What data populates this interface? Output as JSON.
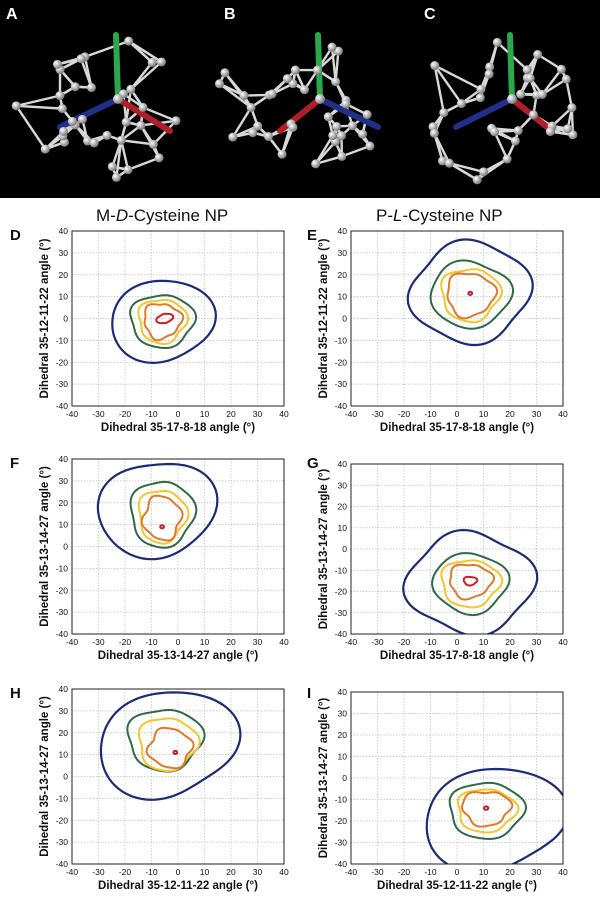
{
  "header": {
    "left": {
      "prefix": "M-",
      "italic": "D",
      "suffix": "-Cysteine NP"
    },
    "right": {
      "prefix": "P-",
      "italic": "L",
      "suffix": "-Cysteine NP"
    }
  },
  "structure_panels": [
    {
      "letter": "A"
    },
    {
      "letter": "B"
    },
    {
      "letter": "C"
    }
  ],
  "colors": {
    "level1": "#1c2a78",
    "level2": "#2f6a47",
    "level3": "#f3c62b",
    "level4": "#e07a2a",
    "level5": "#c8202a",
    "bond_green": "#2aa84a",
    "bond_blue": "#1f2f8a",
    "bond_red": "#b01e28",
    "atom": "#c9c9c9"
  },
  "chart_data": [
    {
      "id": "D",
      "type": "contour",
      "letter": "D",
      "xlabel": "Dihedral 35-17-8-18 angle (°)",
      "ylabel": "Dihedral 35-12-11-22 angle (°)",
      "xlim": [
        -40,
        40
      ],
      "ylim": [
        -40,
        40
      ],
      "ticks": [
        -40,
        -30,
        -20,
        -10,
        0,
        10,
        20,
        30,
        40
      ],
      "grid": true,
      "contours": [
        {
          "level": 1,
          "cx": -6,
          "cy": -1,
          "rx": 19,
          "ry": 19,
          "bumps": [
            [
              2,
              0.06,
              0.4
            ],
            [
              3,
              0.04,
              1.1
            ]
          ]
        },
        {
          "level": 2,
          "cx": -6,
          "cy": -1,
          "rx": 12,
          "ry": 12,
          "bumps": [
            [
              3,
              0.06,
              0.3
            ],
            [
              5,
              0.04,
              1.0
            ]
          ]
        },
        {
          "level": 3,
          "cx": -6,
          "cy": -1,
          "rx": 9,
          "ry": 10,
          "bumps": [
            [
              3,
              0.08,
              0.5
            ],
            [
              5,
              0.05,
              1.4
            ]
          ]
        },
        {
          "level": 4,
          "cx": -6,
          "cy": -1,
          "rx": 7,
          "ry": 8,
          "bumps": [
            [
              3,
              0.1,
              0.9
            ],
            [
              6,
              0.06,
              0.2
            ]
          ]
        },
        {
          "level": 5,
          "cx": -5,
          "cy": 0,
          "rx": 2.5,
          "ry": 2.5,
          "bumps": [
            [
              2,
              0.25,
              0.8
            ],
            [
              4,
              0.08,
              0.3
            ]
          ]
        }
      ]
    },
    {
      "id": "E",
      "type": "contour",
      "letter": "E",
      "xlabel": "Dihedral 35-17-8-18 angle (°)",
      "ylabel": "Dihedral 35-12-11-22 angle (°)",
      "xlim": [
        -40,
        40
      ],
      "ylim": [
        -40,
        40
      ],
      "ticks": [
        -40,
        -30,
        -20,
        -10,
        0,
        10,
        20,
        30,
        40
      ],
      "grid": true,
      "contours": [
        {
          "level": 1,
          "cx": 5,
          "cy": 12,
          "rx": 22,
          "ry": 23,
          "bumps": [
            [
              4,
              0.07,
              0.8
            ],
            [
              2,
              0.03,
              0.2
            ]
          ]
        },
        {
          "level": 2,
          "cx": 5,
          "cy": 11,
          "rx": 15,
          "ry": 15,
          "bumps": [
            [
              4,
              0.05,
              0.6
            ],
            [
              3,
              0.04,
              1.2
            ]
          ]
        },
        {
          "level": 3,
          "cx": 5,
          "cy": 11,
          "rx": 11,
          "ry": 12,
          "bumps": [
            [
              3,
              0.07,
              0.4
            ],
            [
              5,
              0.05,
              1.3
            ]
          ]
        },
        {
          "level": 4,
          "cx": 5,
          "cy": 11,
          "rx": 9,
          "ry": 10,
          "bumps": [
            [
              3,
              0.09,
              1.0
            ],
            [
              6,
              0.05,
              0.5
            ]
          ]
        },
        {
          "level": 5,
          "cx": 5,
          "cy": 11.5,
          "rx": 0.7,
          "ry": 0.7,
          "bumps": []
        }
      ]
    },
    {
      "id": "F",
      "type": "contour",
      "letter": "F",
      "xlabel": "Dihedral 35-13-14-27 angle (°)",
      "ylabel": "Dihedral 35-13-14-27 angle (°)",
      "xlim": [
        -40,
        40
      ],
      "ylim": [
        -40,
        40
      ],
      "ticks": [
        -40,
        -30,
        -20,
        -10,
        0,
        10,
        20,
        30,
        40
      ],
      "grid": true,
      "contours": [
        {
          "level": 1,
          "cx": -8,
          "cy": 17,
          "rx": 21,
          "ry": 23,
          "bumps": [
            [
              2,
              0.08,
              0.9
            ],
            [
              3,
              0.05,
              0.1
            ]
          ]
        },
        {
          "level": 2,
          "cx": -6,
          "cy": 15,
          "rx": 12,
          "ry": 15,
          "bumps": [
            [
              3,
              0.06,
              0.5
            ],
            [
              5,
              0.04,
              1.1
            ]
          ]
        },
        {
          "level": 3,
          "cx": -6,
          "cy": 14,
          "rx": 9,
          "ry": 12,
          "bumps": [
            [
              3,
              0.08,
              0.7
            ],
            [
              5,
              0.05,
              1.5
            ]
          ]
        },
        {
          "level": 4,
          "cx": -6,
          "cy": 13,
          "rx": 7,
          "ry": 10,
          "bumps": [
            [
              4,
              0.09,
              0.3
            ],
            [
              6,
              0.05,
              1.0
            ]
          ]
        },
        {
          "level": 5,
          "cx": -6,
          "cy": 9,
          "rx": 0.7,
          "ry": 0.7,
          "bumps": []
        }
      ]
    },
    {
      "id": "G",
      "type": "contour",
      "letter": "G",
      "xlabel": "Dihedral 35-17-8-18 angle (°)",
      "ylabel": "Dihedral 35-13-14-27 angle (°)",
      "xlim": [
        -40,
        40
      ],
      "ylim": [
        -40,
        40
      ],
      "ticks": [
        -40,
        -30,
        -20,
        -10,
        0,
        10,
        20,
        30,
        40
      ],
      "grid": true,
      "contours": [
        {
          "level": 1,
          "cx": 5,
          "cy": -16,
          "rx": 23,
          "ry": 24,
          "bumps": [
            [
              4,
              0.08,
              0.8
            ],
            [
              2,
              0.03,
              1.4
            ]
          ]
        },
        {
          "level": 2,
          "cx": 5,
          "cy": -16,
          "rx": 14,
          "ry": 14,
          "bumps": [
            [
              4,
              0.05,
              0.8
            ],
            [
              3,
              0.04,
              0.2
            ]
          ]
        },
        {
          "level": 3,
          "cx": 5,
          "cy": -16,
          "rx": 11,
          "ry": 11,
          "bumps": [
            [
              3,
              0.07,
              0.6
            ],
            [
              5,
              0.05,
              1.2
            ]
          ]
        },
        {
          "level": 4,
          "cx": 5,
          "cy": -15,
          "rx": 8,
          "ry": 8,
          "bumps": [
            [
              3,
              0.09,
              0.9
            ],
            [
              6,
              0.05,
              0.4
            ]
          ]
        },
        {
          "level": 5,
          "cx": 5,
          "cy": -15,
          "rx": 2.5,
          "ry": 2,
          "bumps": [
            [
              3,
              0.1,
              0.5
            ]
          ]
        }
      ]
    },
    {
      "id": "H",
      "type": "contour",
      "letter": "H",
      "xlabel": "Dihedral 35-12-11-22 angle (°)",
      "ylabel": "Dihedral 35-13-14-27 angle (°)",
      "xlim": [
        -40,
        40
      ],
      "ylim": [
        -40,
        40
      ],
      "ticks": [
        -40,
        -30,
        -20,
        -10,
        0,
        10,
        20,
        30,
        40
      ],
      "grid": true,
      "contours": [
        {
          "level": 1,
          "cx": -4,
          "cy": 15,
          "rx": 25,
          "ry": 25,
          "bumps": [
            [
              2,
              0.1,
              0.4
            ],
            [
              3,
              0.05,
              1.0
            ]
          ]
        },
        {
          "level": 2,
          "cx": -5,
          "cy": 17,
          "rx": 14,
          "ry": 14,
          "bumps": [
            [
              3,
              0.07,
              0.3
            ],
            [
              5,
              0.04,
              1.1
            ]
          ]
        },
        {
          "level": 3,
          "cx": -4,
          "cy": 15,
          "rx": 11,
          "ry": 12,
          "bumps": [
            [
              3,
              0.08,
              0.8
            ],
            [
              5,
              0.05,
              1.3
            ]
          ]
        },
        {
          "level": 4,
          "cx": -3,
          "cy": 13,
          "rx": 8,
          "ry": 9,
          "bumps": [
            [
              4,
              0.09,
              0.4
            ],
            [
              6,
              0.05,
              1.0
            ]
          ]
        },
        {
          "level": 5,
          "cx": -1,
          "cy": 11,
          "rx": 0.7,
          "ry": 0.7,
          "bumps": []
        }
      ]
    },
    {
      "id": "I",
      "type": "contour",
      "letter": "I",
      "xlabel": "Dihedral 35-12-11-22 angle (°)",
      "ylabel": "Dihedral 35-13-14-27 angle (°)",
      "xlim": [
        -40,
        40
      ],
      "ylim": [
        -40,
        40
      ],
      "ticks": [
        -40,
        -30,
        -20,
        -10,
        0,
        10,
        20,
        30,
        40
      ],
      "grid": true,
      "contours": [
        {
          "level": 1,
          "cx": 14,
          "cy": -19,
          "rx": 26,
          "ry": 24,
          "bumps": [
            [
              2,
              0.08,
              0.2
            ],
            [
              3,
              0.05,
              1.2
            ]
          ]
        },
        {
          "level": 2,
          "cx": 11,
          "cy": -15,
          "rx": 14,
          "ry": 13,
          "bumps": [
            [
              3,
              0.05,
              0.6
            ],
            [
              5,
              0.04,
              1.1
            ]
          ]
        },
        {
          "level": 3,
          "cx": 11,
          "cy": -15,
          "rx": 11,
          "ry": 10,
          "bumps": [
            [
              3,
              0.07,
              0.9
            ],
            [
              5,
              0.05,
              1.4
            ]
          ]
        },
        {
          "level": 4,
          "cx": 11,
          "cy": -14,
          "rx": 9,
          "ry": 8,
          "bumps": [
            [
              3,
              0.09,
              0.3
            ],
            [
              6,
              0.05,
              0.9
            ]
          ]
        },
        {
          "level": 5,
          "cx": 11,
          "cy": -14,
          "rx": 0.8,
          "ry": 0.8,
          "bumps": []
        }
      ]
    }
  ]
}
